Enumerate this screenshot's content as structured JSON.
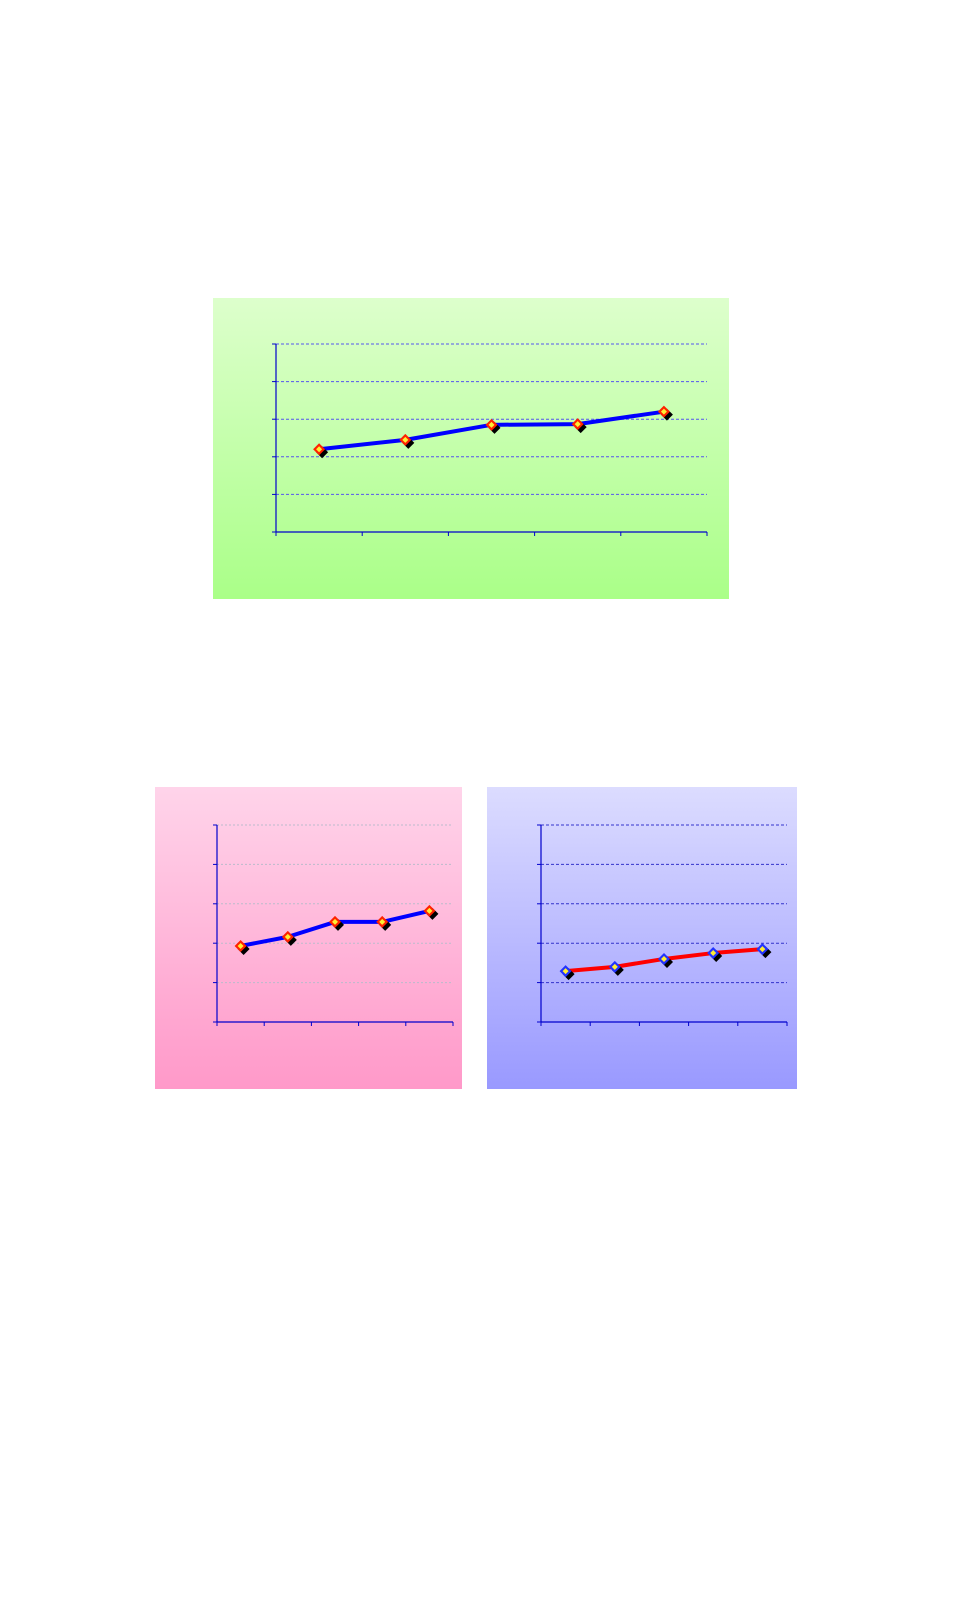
{
  "chart_data": [
    {
      "type": "line",
      "categories": [
        null,
        null,
        null,
        null,
        null
      ],
      "values": [
        2.2,
        2.45,
        2.85,
        2.87,
        3.2
      ],
      "color": "#0000ff",
      "marker_color": "#ff2200",
      "ylim": [
        0,
        5
      ],
      "yticks": [
        0,
        1,
        2,
        3,
        4,
        5
      ],
      "grid": true
    },
    {
      "type": "line",
      "categories": [
        null,
        null,
        null,
        null,
        null
      ],
      "values": [
        1.93,
        2.16,
        2.54,
        2.54,
        2.82
      ],
      "color": "#0000ff",
      "marker_color": "#ff2200",
      "ylim": [
        0,
        5
      ],
      "yticks": [
        0,
        1,
        2,
        3,
        4,
        5
      ],
      "grid": true
    },
    {
      "type": "line",
      "categories": [
        null,
        null,
        null,
        null,
        null
      ],
      "values": [
        1.29,
        1.4,
        1.6,
        1.75,
        1.85
      ],
      "color": "#ff0000",
      "marker_color": "#2233ff",
      "ylim": [
        0,
        5
      ],
      "yticks": [
        0,
        1,
        2,
        3,
        4,
        5
      ],
      "grid": true
    }
  ]
}
